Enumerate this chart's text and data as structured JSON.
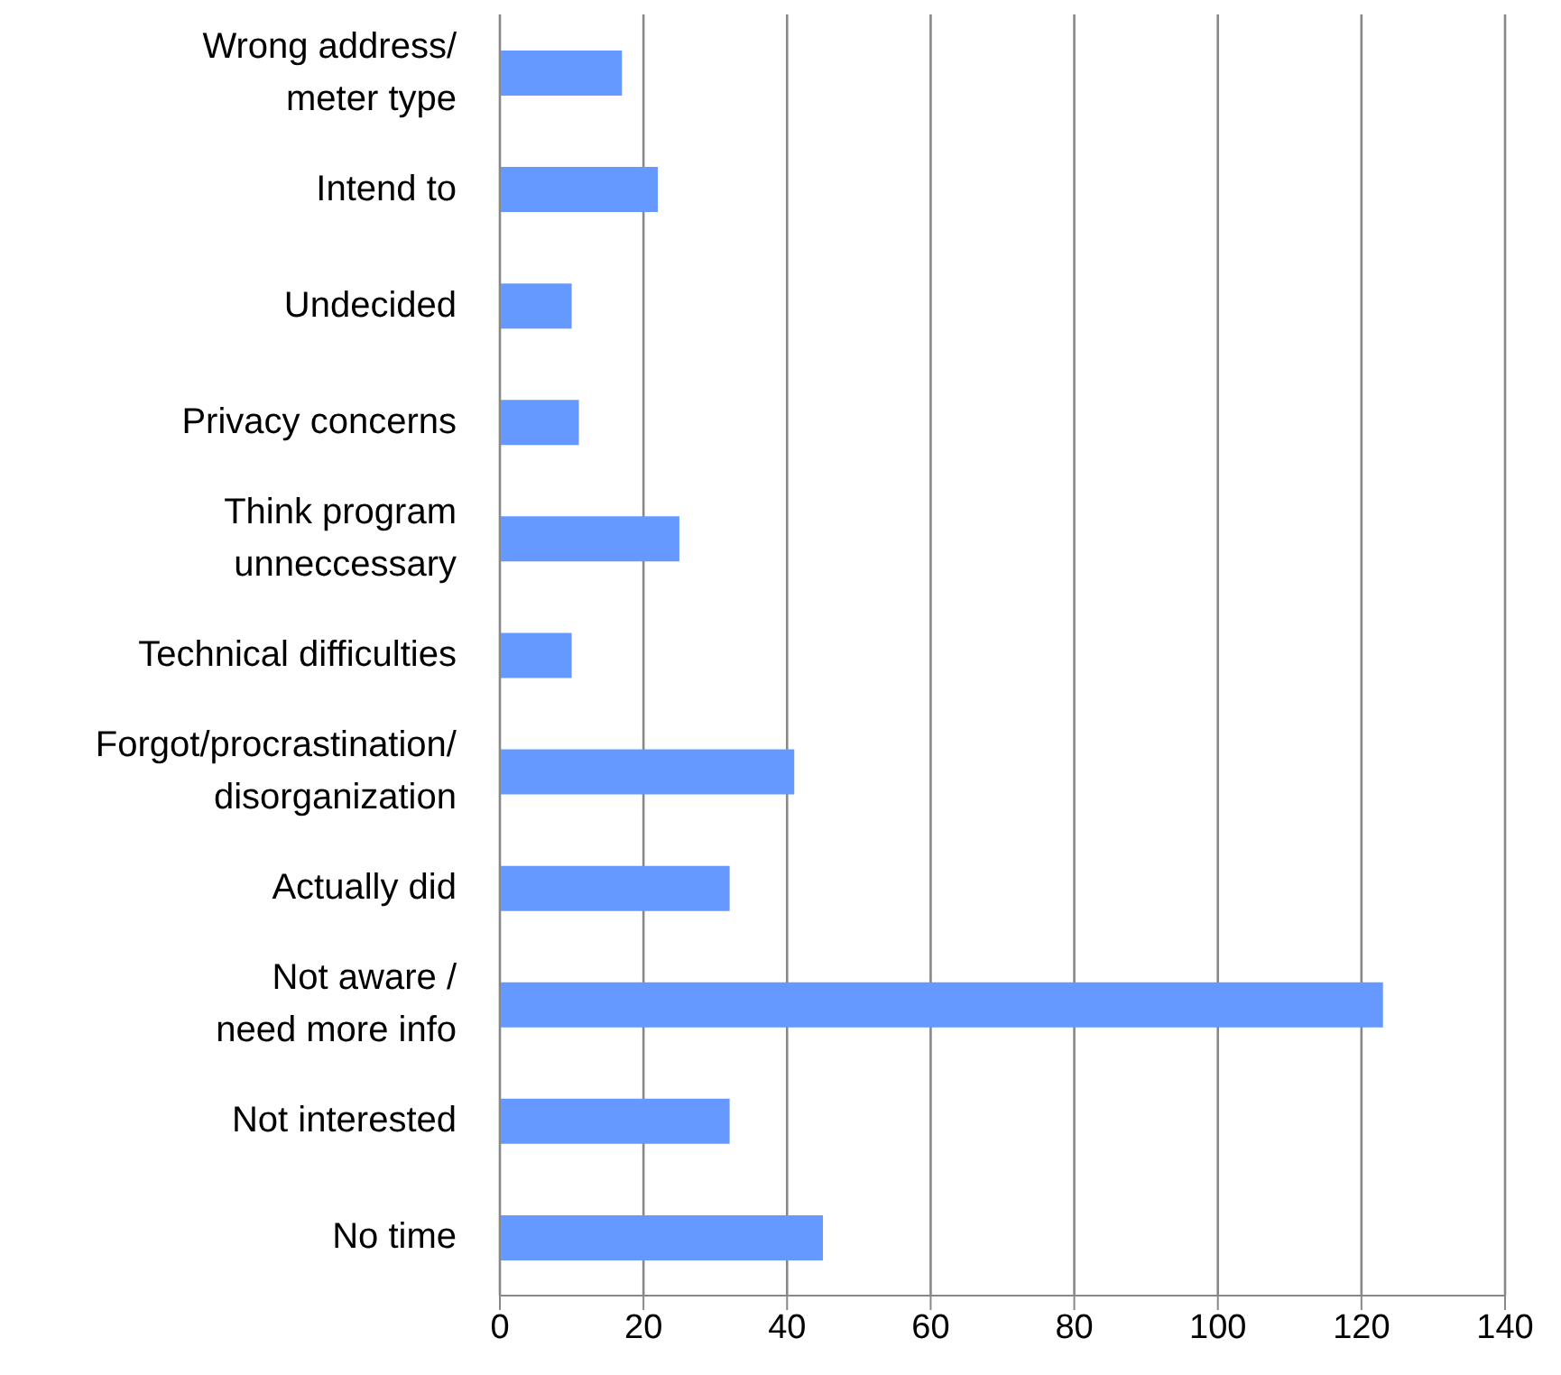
{
  "chart_data": {
    "type": "bar",
    "orientation": "horizontal",
    "categories": [
      "Wrong address/\nmeter type",
      "Intend to",
      "Undecided",
      "Privacy concerns",
      "Think program\nunneccessary",
      "Technical difficulties",
      "Forgot/procrastination/\ndisorganization",
      "Actually did",
      "Not aware /\nneed more info",
      "Not interested",
      "No time"
    ],
    "values": [
      17,
      22,
      10,
      11,
      25,
      10,
      41,
      32,
      123,
      32,
      45
    ],
    "color": "#6699ff",
    "xlim": [
      0,
      140
    ],
    "xticks": [
      0,
      20,
      40,
      60,
      80,
      100,
      120,
      140
    ],
    "grid": "x"
  }
}
